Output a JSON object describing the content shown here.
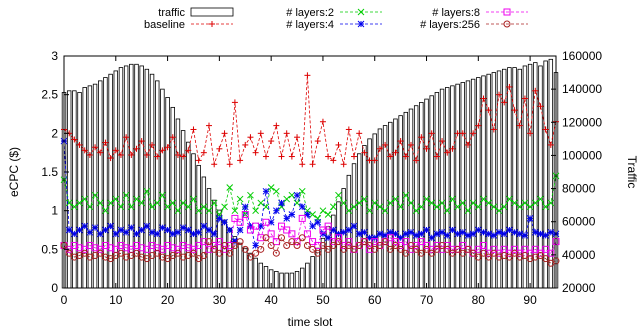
{
  "chart_data": {
    "type": "line",
    "xlabel": "time slot",
    "ylabel": "eCPC ($)",
    "y2label": "Traffic",
    "xlim": [
      0,
      95
    ],
    "ylim": [
      0,
      3
    ],
    "y2lim": [
      20000,
      160000
    ],
    "x_ticks": [
      0,
      10,
      20,
      30,
      40,
      50,
      60,
      70,
      80,
      90
    ],
    "y_ticks": [
      0,
      0.5,
      1,
      1.5,
      2,
      2.5,
      3
    ],
    "y2_ticks": [
      20000,
      40000,
      60000,
      80000,
      100000,
      120000,
      140000,
      160000
    ],
    "legend_position": "top",
    "traffic": {
      "name": "traffic",
      "axis": "right",
      "style": "boxes",
      "values": [
        138000,
        139000,
        139000,
        138000,
        141000,
        142000,
        143000,
        145000,
        147000,
        149000,
        151000,
        153000,
        154000,
        155000,
        155000,
        154000,
        152000,
        149000,
        145000,
        140000,
        135000,
        129000,
        122000,
        115000,
        108000,
        101000,
        94000,
        87000,
        80000,
        73000,
        67000,
        61000,
        56000,
        51000,
        47000,
        44000,
        41000,
        38000,
        35000,
        33000,
        31000,
        30000,
        29000,
        29000,
        29000,
        30000,
        32000,
        35000,
        39000,
        44000,
        50000,
        57000,
        64000,
        72000,
        80000,
        88000,
        95000,
        101000,
        106000,
        110000,
        113000,
        116000,
        118000,
        120000,
        122000,
        124000,
        126000,
        128000,
        130000,
        132000,
        134000,
        136000,
        138000,
        140000,
        141000,
        142000,
        143000,
        144000,
        145000,
        146000,
        147000,
        148000,
        149000,
        150000,
        151000,
        152000,
        153000,
        153000,
        152000,
        154000,
        155000,
        156000,
        154000,
        157000,
        158000,
        150000
      ]
    },
    "series": [
      {
        "name": "baseline",
        "color": "#dd0000",
        "marker": "plus",
        "axis": "left",
        "values": [
          2.05,
          2.0,
          1.92,
          1.85,
          1.78,
          1.72,
          1.82,
          1.75,
          1.88,
          1.68,
          1.78,
          1.72,
          1.95,
          1.72,
          1.8,
          1.9,
          1.72,
          1.85,
          1.7,
          1.78,
          1.82,
          1.95,
          1.72,
          1.7,
          1.78,
          2.05,
          1.65,
          1.75,
          2.1,
          1.6,
          1.8,
          2.0,
          1.6,
          2.4,
          1.65,
          1.85,
          1.95,
          1.75,
          2.0,
          1.7,
          1.9,
          2.1,
          1.7,
          2.0,
          1.7,
          1.95,
          1.6,
          2.75,
          1.6,
          1.9,
          2.15,
          1.7,
          1.65,
          1.85,
          1.6,
          2.05,
          1.7,
          2.0,
          1.75,
          1.65,
          1.65,
          1.8,
          1.85,
          1.7,
          1.75,
          1.9,
          1.7,
          1.85,
          1.65,
          1.95,
          1.8,
          2.0,
          1.7,
          1.9,
          1.75,
          1.8,
          2.0,
          2.0,
          1.85,
          2.0,
          2.1,
          2.45,
          2.3,
          2.05,
          2.5,
          2.4,
          2.6,
          2.3,
          2.1,
          2.45,
          2.0,
          2.55,
          2.35,
          2.05,
          1.85,
          2.15
        ]
      },
      {
        "name": "# layers:2",
        "color": "#00cc00",
        "marker": "x",
        "axis": "left",
        "values": [
          1.4,
          1.1,
          1.05,
          1.1,
          1.15,
          1.05,
          1.2,
          1.1,
          1.0,
          1.1,
          1.15,
          1.05,
          1.2,
          1.05,
          1.15,
          1.1,
          1.25,
          1.05,
          1.1,
          1.2,
          1.05,
          1.1,
          1.0,
          1.1,
          1.05,
          1.15,
          1.0,
          1.05,
          1.0,
          1.1,
          0.95,
          1.05,
          1.3,
          1.0,
          1.15,
          0.95,
          1.2,
          1.0,
          1.1,
          1.05,
          1.3,
          1.25,
          1.05,
          1.15,
          1.2,
          1.1,
          1.25,
          1.0,
          0.95,
          0.9,
          1.0,
          0.95,
          1.05,
          1.2,
          1.1,
          1.0,
          1.05,
          1.1,
          1.15,
          1.0,
          1.1,
          1.05,
          1.0,
          1.1,
          1.15,
          1.05,
          1.2,
          1.1,
          1.0,
          1.05,
          1.15,
          1.1,
          1.05,
          1.1,
          1.0,
          1.15,
          1.05,
          1.1,
          1.0,
          1.1,
          1.05,
          1.15,
          1.1,
          1.05,
          1.0,
          1.05,
          1.15,
          1.1,
          1.05,
          1.1,
          1.05,
          1.1,
          1.15,
          1.05,
          1.1,
          1.45
        ]
      },
      {
        "name": "# layers:4",
        "color": "#0000ee",
        "marker": "star",
        "axis": "left",
        "values": [
          1.9,
          0.75,
          0.7,
          0.75,
          0.8,
          0.72,
          0.78,
          0.7,
          0.75,
          0.8,
          0.7,
          0.75,
          0.72,
          0.78,
          0.7,
          0.75,
          0.8,
          0.72,
          0.7,
          0.78,
          0.75,
          0.7,
          0.72,
          0.78,
          0.75,
          0.7,
          0.72,
          0.8,
          0.75,
          0.7,
          0.9,
          0.85,
          0.75,
          0.6,
          0.75,
          1.05,
          0.8,
          0.55,
          0.8,
          1.25,
          0.85,
          1.0,
          1.1,
          0.9,
          0.95,
          1.2,
          1.05,
          0.95,
          0.8,
          0.85,
          0.7,
          0.65,
          0.75,
          0.7,
          0.72,
          0.75,
          0.8,
          0.7,
          0.72,
          0.65,
          0.65,
          0.7,
          0.68,
          0.72,
          0.7,
          0.65,
          0.7,
          0.72,
          0.68,
          0.7,
          0.75,
          0.65,
          0.7,
          0.72,
          0.68,
          0.75,
          0.7,
          0.72,
          0.68,
          0.7,
          0.75,
          0.72,
          0.7,
          0.68,
          0.72,
          0.7,
          0.75,
          0.72,
          0.7,
          0.68,
          0.9,
          0.72,
          0.7,
          0.68,
          0.72,
          0.7
        ]
      },
      {
        "name": "# layers:8",
        "color": "#ee00ee",
        "marker": "square",
        "axis": "left",
        "values": [
          0.55,
          0.5,
          0.55,
          0.52,
          0.5,
          0.55,
          0.52,
          0.5,
          0.55,
          0.52,
          0.5,
          0.55,
          0.52,
          0.5,
          0.55,
          0.52,
          0.5,
          0.55,
          0.52,
          0.5,
          0.55,
          0.52,
          0.5,
          0.55,
          0.52,
          0.5,
          0.55,
          0.6,
          0.5,
          0.55,
          0.6,
          0.5,
          0.55,
          0.9,
          0.85,
          0.95,
          0.75,
          0.8,
          0.65,
          0.85,
          0.7,
          0.6,
          0.8,
          0.75,
          0.7,
          0.6,
          0.9,
          0.7,
          0.6,
          0.55,
          0.75,
          0.8,
          0.6,
          0.65,
          0.55,
          0.6,
          0.5,
          0.55,
          0.6,
          0.5,
          0.6,
          0.55,
          0.6,
          0.65,
          0.6,
          0.55,
          0.6,
          0.5,
          0.55,
          0.6,
          0.55,
          0.5,
          0.55,
          0.5,
          0.55,
          0.5,
          0.5,
          0.55,
          0.5,
          0.45,
          0.5,
          0.55,
          0.45,
          0.5,
          0.45,
          0.5,
          0.45,
          0.5,
          0.45,
          0.5,
          0.45,
          0.5,
          0.45,
          0.5,
          0.45,
          0.6
        ]
      },
      {
        "name": "# layers:256",
        "color": "#aa2222",
        "marker": "circle",
        "axis": "left",
        "values": [
          0.55,
          0.45,
          0.4,
          0.42,
          0.45,
          0.4,
          0.42,
          0.45,
          0.4,
          0.38,
          0.42,
          0.45,
          0.4,
          0.42,
          0.45,
          0.4,
          0.38,
          0.42,
          0.45,
          0.4,
          0.38,
          0.42,
          0.45,
          0.4,
          0.42,
          0.45,
          0.38,
          0.42,
          0.6,
          0.5,
          0.45,
          0.55,
          0.45,
          0.55,
          0.6,
          0.5,
          0.4,
          0.45,
          0.5,
          0.65,
          0.55,
          0.45,
          0.65,
          0.55,
          0.6,
          0.55,
          0.65,
          0.55,
          0.5,
          0.45,
          0.55,
          0.5,
          0.55,
          0.6,
          0.5,
          0.55,
          0.5,
          0.55,
          0.6,
          0.55,
          0.5,
          0.55,
          0.6,
          0.5,
          0.55,
          0.5,
          0.45,
          0.55,
          0.5,
          0.45,
          0.5,
          0.45,
          0.5,
          0.55,
          0.5,
          0.45,
          0.5,
          0.45,
          0.5,
          0.45,
          0.4,
          0.45,
          0.4,
          0.45,
          0.4,
          0.42,
          0.4,
          0.45,
          0.4,
          0.42,
          0.38,
          0.4,
          0.42,
          0.38,
          0.32,
          0.35
        ]
      }
    ]
  }
}
